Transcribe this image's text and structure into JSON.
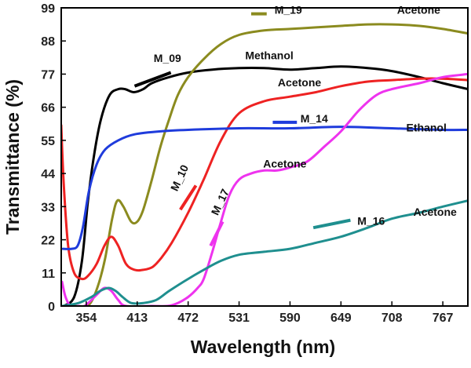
{
  "chart_data": {
    "type": "line",
    "xlabel": "Wavelength (nm)",
    "ylabel": "Transmittance (%)",
    "xlim": [
      325,
      796
    ],
    "ylim": [
      0,
      99
    ],
    "x_ticks": [
      354,
      413,
      472,
      531,
      590,
      649,
      708,
      767
    ],
    "y_ticks": [
      0,
      11,
      22,
      33,
      44,
      55,
      66,
      77,
      88,
      99
    ],
    "grid": false,
    "series": [
      {
        "name": "M_09",
        "color": "#000000",
        "points": [
          [
            328,
            0
          ],
          [
            340,
            3
          ],
          [
            349,
            15
          ],
          [
            356,
            35
          ],
          [
            363,
            50
          ],
          [
            371,
            62
          ],
          [
            381,
            70
          ],
          [
            391,
            72
          ],
          [
            399,
            72
          ],
          [
            409,
            71
          ],
          [
            420,
            72
          ],
          [
            430,
            74
          ],
          [
            450,
            76
          ],
          [
            472,
            77.5
          ],
          [
            500,
            78.5
          ],
          [
            531,
            79
          ],
          [
            560,
            79
          ],
          [
            590,
            78.5
          ],
          [
            620,
            79
          ],
          [
            649,
            79.5
          ],
          [
            680,
            79
          ],
          [
            708,
            78
          ],
          [
            740,
            76
          ],
          [
            767,
            74
          ],
          [
            796,
            72
          ]
        ]
      },
      {
        "name": "M_19",
        "color": "#8b8b1f",
        "points": [
          [
            328,
            0
          ],
          [
            340,
            0
          ],
          [
            354,
            0
          ],
          [
            361,
            2
          ],
          [
            369,
            8
          ],
          [
            376,
            16
          ],
          [
            384,
            29
          ],
          [
            390,
            35
          ],
          [
            397,
            33
          ],
          [
            406,
            28
          ],
          [
            413,
            28
          ],
          [
            420,
            32
          ],
          [
            430,
            42
          ],
          [
            440,
            53
          ],
          [
            450,
            62
          ],
          [
            460,
            70
          ],
          [
            472,
            76
          ],
          [
            490,
            82
          ],
          [
            510,
            87
          ],
          [
            531,
            90
          ],
          [
            560,
            91.5
          ],
          [
            590,
            92
          ],
          [
            620,
            92.5
          ],
          [
            649,
            93
          ],
          [
            680,
            93.5
          ],
          [
            708,
            93.5
          ],
          [
            740,
            93
          ],
          [
            767,
            92
          ],
          [
            796,
            90.5
          ]
        ]
      },
      {
        "name": "M_10",
        "color": "#ee2222",
        "points": [
          [
            325,
            60
          ],
          [
            328,
            40
          ],
          [
            333,
            20
          ],
          [
            340,
            11
          ],
          [
            349,
            9
          ],
          [
            356,
            10
          ],
          [
            366,
            14
          ],
          [
            375,
            20
          ],
          [
            383,
            23
          ],
          [
            391,
            20
          ],
          [
            400,
            14
          ],
          [
            410,
            12
          ],
          [
            420,
            12
          ],
          [
            431,
            13
          ],
          [
            441,
            16
          ],
          [
            453,
            21
          ],
          [
            472,
            31
          ],
          [
            490,
            42
          ],
          [
            510,
            55
          ],
          [
            531,
            64
          ],
          [
            560,
            68
          ],
          [
            590,
            69.5
          ],
          [
            620,
            71
          ],
          [
            649,
            73
          ],
          [
            680,
            74.5
          ],
          [
            708,
            75
          ],
          [
            740,
            75.5
          ],
          [
            767,
            75.5
          ],
          [
            796,
            75
          ]
        ]
      },
      {
        "name": "M_14",
        "color": "#1f3cdc",
        "points": [
          [
            327,
            19
          ],
          [
            337,
            19
          ],
          [
            344,
            20
          ],
          [
            350,
            26
          ],
          [
            357,
            38
          ],
          [
            366,
            47
          ],
          [
            376,
            52
          ],
          [
            391,
            55
          ],
          [
            410,
            57
          ],
          [
            440,
            58
          ],
          [
            472,
            58.5
          ],
          [
            531,
            59
          ],
          [
            590,
            59
          ],
          [
            649,
            59.5
          ],
          [
            708,
            59
          ],
          [
            767,
            58.5
          ],
          [
            796,
            58.5
          ]
        ]
      },
      {
        "name": "M_17",
        "color": "#ee33ee",
        "points": [
          [
            326,
            8
          ],
          [
            330,
            3
          ],
          [
            336,
            0
          ],
          [
            345,
            0
          ],
          [
            352,
            0
          ],
          [
            360,
            2
          ],
          [
            367,
            4
          ],
          [
            375,
            6
          ],
          [
            383,
            5
          ],
          [
            391,
            2
          ],
          [
            400,
            0
          ],
          [
            430,
            0
          ],
          [
            448,
            0
          ],
          [
            460,
            1
          ],
          [
            472,
            3
          ],
          [
            483,
            6
          ],
          [
            490,
            9
          ],
          [
            500,
            18
          ],
          [
            510,
            28
          ],
          [
            520,
            37
          ],
          [
            531,
            42
          ],
          [
            545,
            44
          ],
          [
            560,
            45
          ],
          [
            575,
            45
          ],
          [
            590,
            46
          ],
          [
            610,
            48
          ],
          [
            630,
            53
          ],
          [
            649,
            58
          ],
          [
            670,
            65
          ],
          [
            690,
            70
          ],
          [
            708,
            72
          ],
          [
            740,
            74
          ],
          [
            767,
            76
          ],
          [
            796,
            77
          ]
        ]
      },
      {
        "name": "M_16",
        "color": "#1f8f8f",
        "points": [
          [
            326,
            0
          ],
          [
            345,
            1
          ],
          [
            360,
            3
          ],
          [
            370,
            5
          ],
          [
            380,
            6
          ],
          [
            388,
            5
          ],
          [
            396,
            3
          ],
          [
            406,
            1
          ],
          [
            420,
            1
          ],
          [
            435,
            2
          ],
          [
            450,
            5
          ],
          [
            472,
            9
          ],
          [
            490,
            12
          ],
          [
            510,
            15
          ],
          [
            531,
            17
          ],
          [
            560,
            18
          ],
          [
            590,
            19
          ],
          [
            620,
            21
          ],
          [
            649,
            23
          ],
          [
            680,
            26
          ],
          [
            708,
            29
          ],
          [
            740,
            31
          ],
          [
            767,
            33
          ],
          [
            796,
            35
          ]
        ]
      }
    ],
    "annotations": [
      {
        "name": "label-m09",
        "text": "M_09",
        "x": 448,
        "y": 81,
        "color": "#000000"
      },
      {
        "name": "label-methanol",
        "text": "Methanol",
        "x": 566,
        "y": 82,
        "color": "#111111"
      },
      {
        "name": "label-m19",
        "text": "M_19",
        "x": 588,
        "y": 97,
        "color": "#8b8b1f"
      },
      {
        "name": "label-acetone-m19",
        "text": "Acetone",
        "x": 739,
        "y": 97,
        "color": "#111111"
      },
      {
        "name": "label-acetone-m10",
        "text": "Acetone",
        "x": 601,
        "y": 73,
        "color": "#111111"
      },
      {
        "name": "label-m14",
        "text": "M_14",
        "x": 618,
        "y": 61,
        "color": "#1f3cdc"
      },
      {
        "name": "label-ethanol",
        "text": "Ethanol",
        "x": 748,
        "y": 58,
        "color": "#111111"
      },
      {
        "name": "label-m10",
        "text": "M_10",
        "x": 466,
        "y": 42,
        "color": "#ee2222",
        "rotate": -65
      },
      {
        "name": "label-m17",
        "text": "M_17",
        "x": 513,
        "y": 34,
        "color": "#ee33ee",
        "rotate": -65
      },
      {
        "name": "label-acetone-m17",
        "text": "Acetone",
        "x": 584,
        "y": 46,
        "color": "#111111"
      },
      {
        "name": "label-m16",
        "text": "M_16",
        "x": 684,
        "y": 27,
        "color": "#1f8f8f"
      },
      {
        "name": "label-acetone-m16",
        "text": "Acetone",
        "x": 758,
        "y": 30,
        "color": "#111111"
      }
    ],
    "label_lines": [
      {
        "name": "m09-legend-line",
        "color": "#000000",
        "from": [
          410,
          73
        ],
        "to": [
          452,
          77.5
        ]
      },
      {
        "name": "m19-legend-line",
        "color": "#8b8b1f",
        "from": [
          545,
          97
        ],
        "to": [
          563,
          97
        ]
      },
      {
        "name": "m14-legend-line",
        "color": "#1f3cdc",
        "from": [
          570,
          61
        ],
        "to": [
          598,
          61
        ]
      },
      {
        "name": "m10-legend-line",
        "color": "#ee2222",
        "from": [
          463,
          32
        ],
        "to": [
          481,
          40
        ]
      },
      {
        "name": "m17-legend-line",
        "color": "#ee33ee",
        "from": [
          498,
          20
        ],
        "to": [
          512,
          28
        ]
      },
      {
        "name": "m16-legend-line",
        "color": "#1f8f8f",
        "from": [
          617,
          26
        ],
        "to": [
          660,
          28.5
        ]
      }
    ]
  }
}
